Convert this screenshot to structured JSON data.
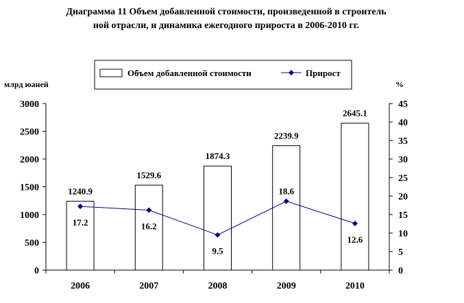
{
  "chart_data": {
    "type": "bar+line",
    "title_line1": "Диаграмма 11 Объем добавленной стоимости, произведенной в строитель",
    "title_line2": "ной отрасли, и динамика ежегодного прироста в 2006-2010 гг.",
    "left_unit": "млрд юаней",
    "right_unit": "%",
    "categories": [
      "2006",
      "2007",
      "2008",
      "2009",
      "2010"
    ],
    "series": [
      {
        "name": "Объем добавленной стоимости",
        "kind": "bar",
        "axis": "left",
        "values": [
          1240.9,
          1529.6,
          1874.3,
          2239.9,
          2645.1
        ],
        "labels": [
          "1240.9",
          "1529.6",
          "1874.3",
          "2239.9",
          "2645.1"
        ]
      },
      {
        "name": "Прирост",
        "kind": "line",
        "axis": "right",
        "values": [
          17.2,
          16.2,
          9.5,
          18.6,
          12.6
        ],
        "labels": [
          "17.2",
          "16.2",
          "9.5",
          "18.6",
          "12.6"
        ]
      }
    ],
    "y_left": {
      "min": 0,
      "max": 3000,
      "ticks": [
        "0",
        "500",
        "1000",
        "1500",
        "2000",
        "2500",
        "3000"
      ]
    },
    "y_right": {
      "min": 0,
      "max": 45,
      "ticks": [
        "0",
        "5",
        "10",
        "15",
        "20",
        "25",
        "30",
        "35",
        "40",
        "45"
      ]
    },
    "legend_position": "top",
    "grid": false,
    "colors": {
      "bar_fill": "#ffffff",
      "bar_stroke": "#000000",
      "line": "#000080",
      "marker": "#000080"
    }
  }
}
